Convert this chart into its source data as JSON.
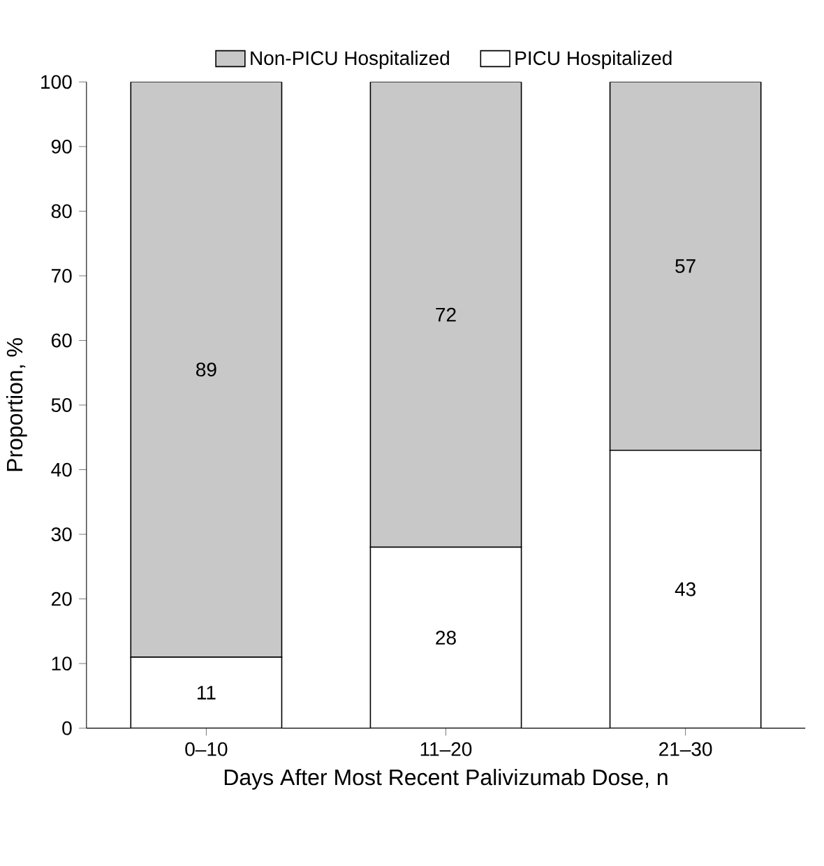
{
  "chart_data": {
    "type": "bar",
    "stacked": true,
    "xlabel": "Days After Most Recent Palivizumab Dose, n",
    "ylabel": "Proportion, %",
    "categories": [
      "0–10",
      "11–20",
      "21–30"
    ],
    "series": [
      {
        "name": "PICU Hospitalized",
        "color": "#ffffff",
        "values": [
          11,
          28,
          43
        ]
      },
      {
        "name": "Non-PICU Hospitalized",
        "color": "#c8c8c8",
        "values": [
          89,
          72,
          57
        ]
      }
    ],
    "ylim": [
      0,
      100
    ],
    "yticks": [
      0,
      10,
      20,
      30,
      40,
      50,
      60,
      70,
      80,
      90,
      100
    ],
    "data_labels": true,
    "legend": "top",
    "grid": false
  }
}
